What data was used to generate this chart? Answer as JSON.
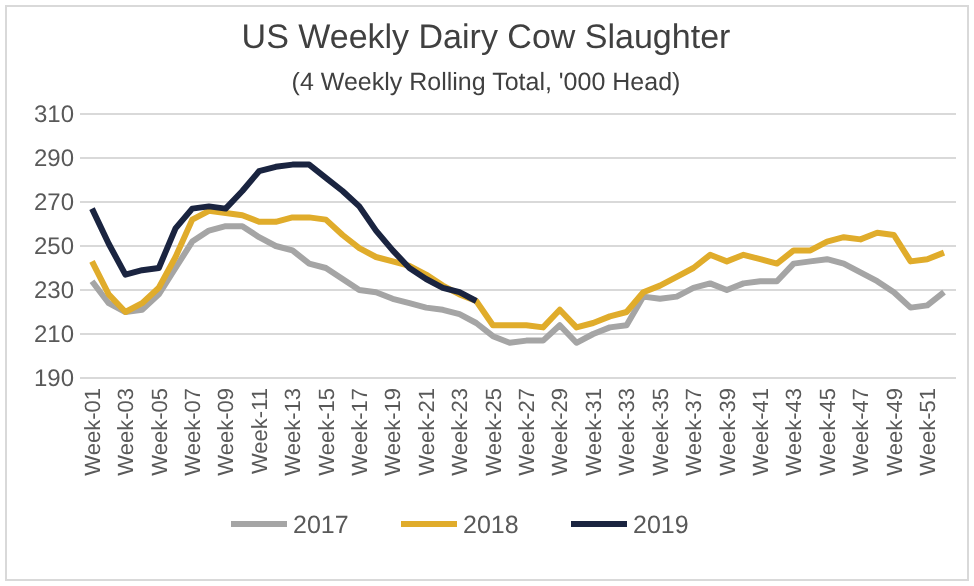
{
  "chart_data": {
    "type": "line",
    "title": "US Weekly  Dairy Cow Slaughter",
    "subtitle": "(4 Weekly Rolling Total, '000 Head)",
    "categories": [
      "Week-01",
      null,
      "Week-03",
      null,
      "Week-05",
      null,
      "Week-07",
      null,
      "Week-09",
      null,
      "Week-11",
      null,
      "Week-13",
      null,
      "Week-15",
      null,
      "Week-17",
      null,
      "Week-19",
      null,
      "Week-21",
      null,
      "Week-23",
      null,
      "Week-25",
      null,
      "Week-27",
      null,
      "Week-29",
      null,
      "Week-31",
      null,
      "Week-33",
      null,
      "Week-35",
      null,
      "Week-37",
      null,
      "Week-39",
      null,
      "Week-41",
      null,
      "Week-43",
      null,
      "Week-45",
      null,
      "Week-47",
      null,
      "Week-49",
      null,
      "Week-51",
      null
    ],
    "series": [
      {
        "name": "2017",
        "color": "#a5a5a5",
        "values": [
          234,
          224,
          220,
          221,
          228,
          240,
          252,
          257,
          259,
          259,
          254,
          250,
          248,
          242,
          240,
          235,
          230,
          229,
          226,
          224,
          222,
          221,
          219,
          215,
          209,
          206,
          207,
          207,
          214,
          206,
          210,
          213,
          214,
          227,
          226,
          227,
          231,
          233,
          230,
          233,
          234,
          234,
          242,
          243,
          244,
          242,
          238,
          234,
          229,
          222,
          223,
          229
        ]
      },
      {
        "name": "2018",
        "color": "#e0ac2b",
        "values": [
          243,
          228,
          220,
          224,
          231,
          245,
          262,
          266,
          265,
          264,
          261,
          261,
          263,
          263,
          262,
          255,
          249,
          245,
          243,
          241,
          237,
          232,
          228,
          225,
          214,
          214,
          214,
          213,
          221,
          213,
          215,
          218,
          220,
          229,
          232,
          236,
          240,
          246,
          243,
          246,
          244,
          242,
          248,
          248,
          252,
          254,
          253,
          256,
          255,
          243,
          244,
          247
        ]
      },
      {
        "name": "2019",
        "color": "#1a2440",
        "values": [
          267,
          251,
          237,
          239,
          240,
          258,
          267,
          268,
          267,
          275,
          284,
          286,
          287,
          287,
          281,
          275,
          268,
          257,
          248,
          240,
          235,
          231,
          229,
          225,
          null,
          null,
          null,
          null,
          null,
          null,
          null,
          null,
          null,
          null,
          null,
          null,
          null,
          null,
          null,
          null,
          null,
          null,
          null,
          null,
          null,
          null,
          null,
          null,
          null,
          null,
          null,
          null
        ]
      }
    ],
    "ylim": [
      190,
      310
    ],
    "yticks": [
      190,
      210,
      230,
      250,
      270,
      290,
      310
    ],
    "grid": "y",
    "legend": "bottom",
    "line_style": "solid",
    "marker": "none"
  }
}
